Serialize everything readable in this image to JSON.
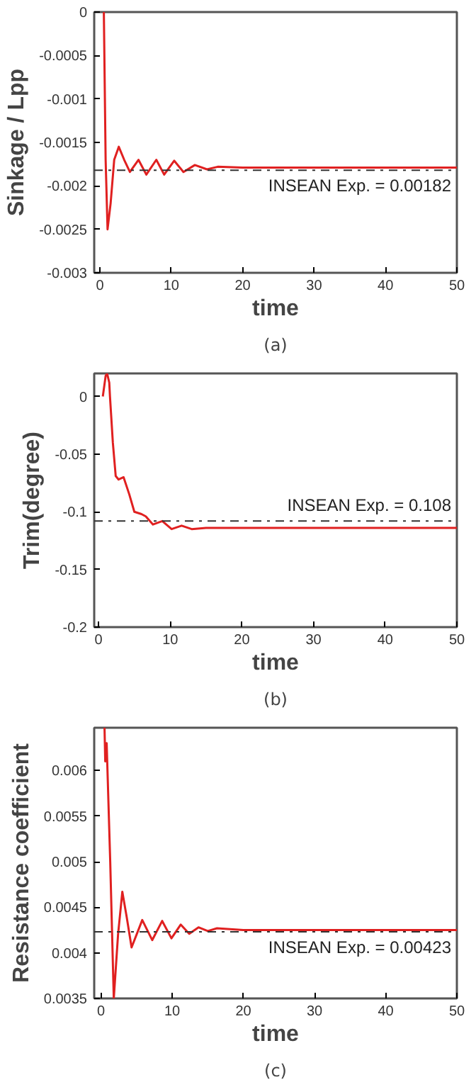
{
  "chart_data": [
    {
      "type": "line",
      "xlabel": "time",
      "ylabel": "Sinkage / Lpp",
      "subtitle": "(a)",
      "xlim": [
        -0.8,
        50
      ],
      "ylim": [
        -0.003,
        0
      ],
      "xticks": [
        0,
        10,
        20,
        30,
        40,
        50
      ],
      "yticks": [
        -0.003,
        -0.0025,
        -0.002,
        -0.0015,
        -0.001,
        -0.0005,
        0
      ],
      "grid": false,
      "line_style": "solid",
      "series": [
        {
          "color": "#e02020",
          "x": [
            0.55,
            0.8,
            1.07,
            1.5,
            2.0,
            2.64,
            3.4,
            4.2,
            5.4,
            6.5,
            7.9,
            9.0,
            10.4,
            11.7,
            13.3,
            15,
            16.5,
            20,
            50
          ],
          "values": [
            0,
            -0.0017,
            -0.0025,
            -0.0022,
            -0.0017,
            -0.00155,
            -0.0017,
            -0.00184,
            -0.0017,
            -0.00187,
            -0.0017,
            -0.00187,
            -0.00171,
            -0.00184,
            -0.00176,
            -0.00181,
            -0.00178,
            -0.00179,
            -0.00179
          ]
        }
      ],
      "annotations": [
        "INSEAN Exp. = 0.00182"
      ],
      "ref_lines": [
        {
          "axis": "y",
          "value": -0.00182,
          "color": "#333333",
          "line_style": "dashdot"
        }
      ]
    },
    {
      "type": "line",
      "xlabel": "time",
      "ylabel": "Trim(degree)",
      "subtitle": "(b)",
      "xlim": [
        -0.6,
        50
      ],
      "ylim": [
        -0.2,
        0.02
      ],
      "xticks": [
        0,
        10,
        20,
        30,
        40,
        50
      ],
      "yticks": [
        -0.2,
        -0.15,
        -0.1,
        -0.05,
        0
      ],
      "grid": false,
      "line_style": "solid",
      "series": [
        {
          "color": "#e02020",
          "x": [
            0.6,
            1.0,
            1.2,
            1.5,
            1.6,
            2.0,
            2.4,
            2.8,
            3.5,
            4.3,
            5.0,
            6.0,
            6.6,
            7.6,
            8.9,
            10.2,
            11.6,
            13,
            15,
            20,
            50
          ],
          "values": [
            0,
            0.018,
            0.02,
            0.012,
            0.0,
            -0.04,
            -0.069,
            -0.072,
            -0.07,
            -0.085,
            -0.1,
            -0.102,
            -0.104,
            -0.111,
            -0.108,
            -0.115,
            -0.112,
            -0.115,
            -0.114,
            -0.114,
            -0.114
          ]
        }
      ],
      "annotations": [
        "INSEAN Exp. = 0.108"
      ],
      "ref_lines": [
        {
          "axis": "y",
          "value": -0.108,
          "color": "#333333",
          "line_style": "dashdot"
        }
      ]
    },
    {
      "type": "line",
      "xlabel": "time",
      "ylabel": "Resistance coefficient",
      "subtitle": "(c)",
      "xlim": [
        -0.95,
        50
      ],
      "ylim": [
        0.0035,
        0.00647
      ],
      "xticks": [
        0,
        10,
        20,
        30,
        40,
        50
      ],
      "yticks": [
        0.0035,
        0.004,
        0.0045,
        0.005,
        0.0055,
        0.006
      ],
      "grid": false,
      "line_style": "solid",
      "series": [
        {
          "color": "#e02020",
          "x": [
            0.5,
            0.6,
            0.8,
            1.3,
            1.8,
            2.4,
            3.0,
            3.6,
            4.3,
            5.8,
            7.2,
            8.6,
            9.9,
            11.2,
            12.4,
            13.7,
            15,
            16.3,
            20,
            50
          ],
          "values": [
            0.00647,
            0.0061,
            0.0063,
            0.005,
            0.0035,
            0.0042,
            0.00467,
            0.0044,
            0.00406,
            0.00436,
            0.00414,
            0.00435,
            0.00416,
            0.00431,
            0.00421,
            0.00428,
            0.00424,
            0.00427,
            0.00425,
            0.00425
          ]
        }
      ],
      "annotations": [
        "INSEAN Exp. = 0.00423"
      ],
      "ref_lines": [
        {
          "axis": "y",
          "value": 0.00423,
          "color": "#333333",
          "line_style": "dashdot"
        }
      ]
    }
  ]
}
